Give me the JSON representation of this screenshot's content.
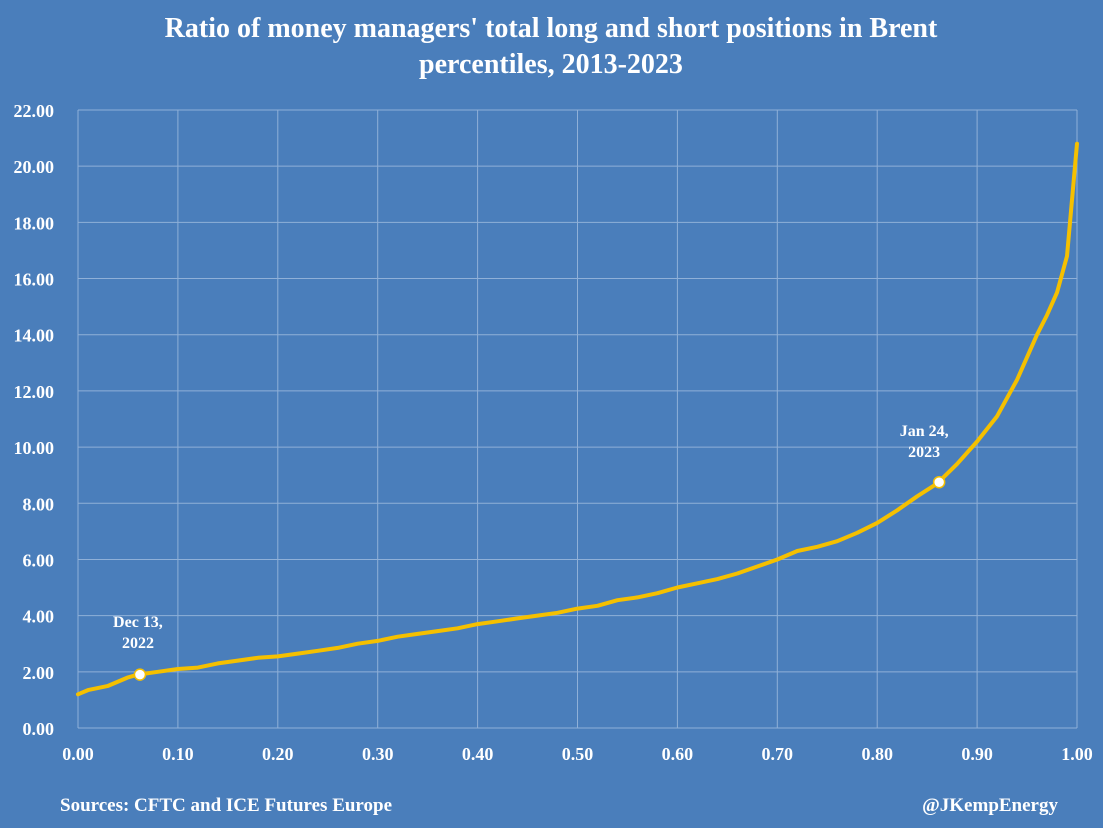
{
  "chart_data": {
    "type": "line",
    "title_lines": [
      "Ratio of money managers' total long and short positions in Brent",
      "percentiles, 2013-2023"
    ],
    "xlim": [
      0,
      1
    ],
    "ylim": [
      0,
      22
    ],
    "grid": true,
    "x_ticks": [
      "0.00",
      "0.10",
      "0.20",
      "0.30",
      "0.40",
      "0.50",
      "0.60",
      "0.70",
      "0.80",
      "0.90",
      "1.00"
    ],
    "y_ticks": [
      "0.00",
      "2.00",
      "4.00",
      "6.00",
      "8.00",
      "10.00",
      "12.00",
      "14.00",
      "16.00",
      "18.00",
      "20.00",
      "22.00"
    ],
    "line_color": "#f5c000",
    "series": [
      {
        "x": [
          0.0,
          0.01,
          0.03,
          0.05,
          0.06,
          0.08,
          0.1,
          0.12,
          0.14,
          0.16,
          0.18,
          0.2,
          0.22,
          0.24,
          0.26,
          0.28,
          0.3,
          0.32,
          0.34,
          0.36,
          0.38,
          0.4,
          0.42,
          0.44,
          0.46,
          0.48,
          0.5,
          0.52,
          0.54,
          0.56,
          0.58,
          0.6,
          0.62,
          0.64,
          0.66,
          0.68,
          0.7,
          0.72,
          0.74,
          0.76,
          0.78,
          0.8,
          0.82,
          0.84,
          0.86,
          0.88,
          0.9,
          0.92,
          0.94,
          0.96,
          0.97,
          0.98,
          0.99,
          1.0
        ],
        "y": [
          1.2,
          1.35,
          1.5,
          1.8,
          1.9,
          2.0,
          2.1,
          2.15,
          2.3,
          2.4,
          2.5,
          2.55,
          2.65,
          2.75,
          2.85,
          3.0,
          3.1,
          3.25,
          3.35,
          3.45,
          3.55,
          3.7,
          3.8,
          3.9,
          4.0,
          4.1,
          4.25,
          4.35,
          4.55,
          4.65,
          4.8,
          5.0,
          5.15,
          5.3,
          5.5,
          5.75,
          6.0,
          6.3,
          6.45,
          6.65,
          6.95,
          7.3,
          7.75,
          8.25,
          8.7,
          9.4,
          10.2,
          11.1,
          12.4,
          14.0,
          14.7,
          15.5,
          16.8,
          20.8
        ]
      }
    ],
    "annotations": [
      {
        "x": 0.062,
        "y": 1.9,
        "lines": [
          "Dec 13,",
          "2022"
        ],
        "label_x": 0.06,
        "label_y": 3.6
      },
      {
        "x": 0.862,
        "y": 8.75,
        "lines": [
          "Jan 24,",
          "2023"
        ],
        "label_x": 0.847,
        "label_y": 10.4
      }
    ]
  },
  "footer": {
    "source": "Sources: CFTC and ICE Futures Europe",
    "handle": "@JKempEnergy"
  }
}
